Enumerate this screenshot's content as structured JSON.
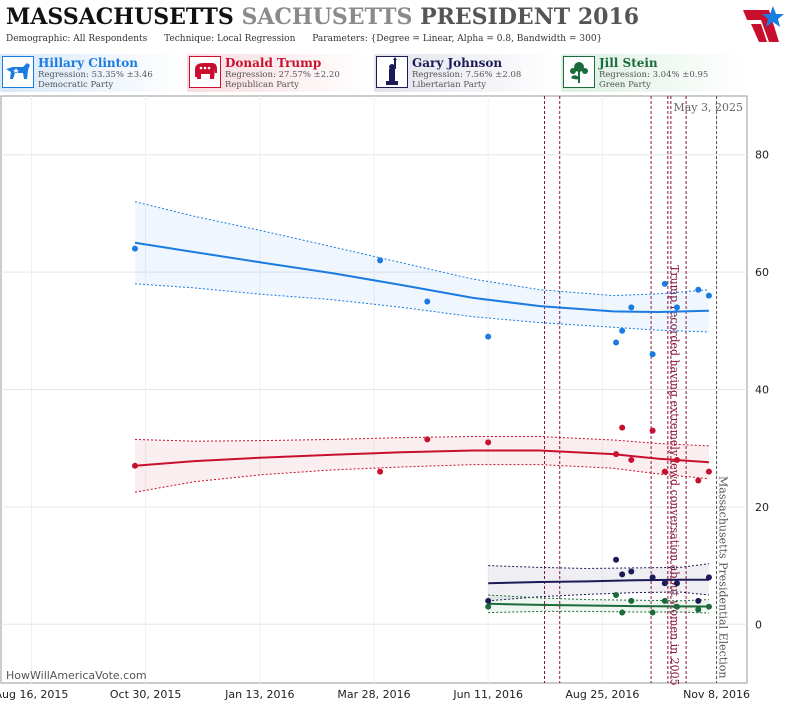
{
  "header": {
    "state": "MASSACHUSETTS",
    "watermark": "SACHUSETTS",
    "race": "PRESIDENT 2016",
    "demographic": "Demographic: All Respondents",
    "technique": "Technique: Local Regression",
    "parameters": "Parameters: {Degree = Linear, Alpha = 0.8, Bandwidth = 300}"
  },
  "candidates": [
    {
      "name": "Hillary Clinton",
      "regression": "Regression: 53.35% ±3.46",
      "party": "Democratic Party",
      "color": "#1a7be0",
      "icon": "donkey-icon"
    },
    {
      "name": "Donald Trump",
      "regression": "Regression: 27.57% ±2.20",
      "party": "Republican Party",
      "color": "#c8102e",
      "icon": "elephant-icon"
    },
    {
      "name": "Gary Johnson",
      "regression": "Regression: 7.56% ±2.08",
      "party": "Libertarian Party",
      "color": "#1c1a57",
      "icon": "statue-of-liberty-icon"
    },
    {
      "name": "Jill Stein",
      "regression": "Regression: 3.04% ±0.95",
      "party": "Green Party",
      "color": "#1c6b3a",
      "icon": "sunflower-icon"
    }
  ],
  "date_stamp": "May 3, 2025",
  "source": "HowWillAmericaVote.com",
  "chart_data": {
    "type": "scatter",
    "x_axis": {
      "type": "date",
      "range": [
        "2015-07-27",
        "2016-11-28"
      ],
      "ticks": [
        {
          "date": "2015-08-16",
          "label": "Aug 16, 2015"
        },
        {
          "date": "2015-10-30",
          "label": "Oct 30, 2015"
        },
        {
          "date": "2016-01-13",
          "label": "Jan 13, 2016"
        },
        {
          "date": "2016-03-28",
          "label": "Mar 28, 2016"
        },
        {
          "date": "2016-06-11",
          "label": "Jun 11, 2016"
        },
        {
          "date": "2016-08-25",
          "label": "Aug 25, 2016"
        },
        {
          "date": "2016-11-08",
          "label": "Nov 8, 2016"
        }
      ]
    },
    "y_axis": {
      "range": [
        -10,
        90
      ],
      "ticks": [
        0,
        20,
        40,
        60,
        80
      ],
      "side": "right"
    },
    "grid": true,
    "events": [
      {
        "date": "2016-07-18",
        "style": "dashed",
        "color": "#8b1538",
        "label": ""
      },
      {
        "date": "2016-07-28",
        "style": "dashed",
        "color": "#8b1538",
        "label": ""
      },
      {
        "date": "2016-09-26",
        "style": "dashed",
        "color": "#8b1538",
        "label": ""
      },
      {
        "date": "2016-10-07",
        "style": "dashed",
        "color": "#8b1538",
        "label": "Trump recorded having extremely lewd conversation about women in 2005"
      },
      {
        "date": "2016-10-09",
        "style": "dashed",
        "color": "#8b1538",
        "label": ""
      },
      {
        "date": "2016-10-19",
        "style": "dashed",
        "color": "#8b1538",
        "label": ""
      },
      {
        "date": "2016-11-08",
        "style": "dashed",
        "color": "#555555",
        "label": "Massachusetts Presidential Election"
      }
    ],
    "series": [
      {
        "name": "Hillary Clinton",
        "color": "#1a7be0",
        "points": [
          [
            "2015-10-23",
            64
          ],
          [
            "2016-04-01",
            62
          ],
          [
            "2016-05-02",
            55
          ],
          [
            "2016-06-11",
            49
          ],
          [
            "2016-09-03",
            48
          ],
          [
            "2016-09-07",
            50
          ],
          [
            "2016-09-13",
            54
          ],
          [
            "2016-09-27",
            46
          ],
          [
            "2016-10-05",
            58
          ],
          [
            "2016-10-13",
            54
          ],
          [
            "2016-10-27",
            57
          ],
          [
            "2016-11-03",
            56
          ]
        ],
        "trend": [
          [
            "2015-10-23",
            65
          ],
          [
            "2015-12-01",
            63.4
          ],
          [
            "2016-01-15",
            61.6
          ],
          [
            "2016-03-01",
            59.8
          ],
          [
            "2016-04-15",
            57.8
          ],
          [
            "2016-06-01",
            55.6
          ],
          [
            "2016-07-15",
            54.2
          ],
          [
            "2016-09-01",
            53.3
          ],
          [
            "2016-10-01",
            53.2
          ],
          [
            "2016-11-03",
            53.4
          ]
        ],
        "upper": [
          [
            "2015-10-23",
            72
          ],
          [
            "2015-12-01",
            69.5
          ],
          [
            "2016-01-15",
            67
          ],
          [
            "2016-03-01",
            64.3
          ],
          [
            "2016-04-15",
            61.6
          ],
          [
            "2016-06-01",
            58.8
          ],
          [
            "2016-07-15",
            57
          ],
          [
            "2016-09-01",
            56
          ],
          [
            "2016-10-01",
            56.3
          ],
          [
            "2016-11-03",
            57
          ]
        ],
        "lower": [
          [
            "2015-10-23",
            58
          ],
          [
            "2015-12-01",
            57.3
          ],
          [
            "2016-01-15",
            56.2
          ],
          [
            "2016-03-01",
            55.3
          ],
          [
            "2016-04-15",
            54
          ],
          [
            "2016-06-01",
            52.4
          ],
          [
            "2016-07-15",
            51.4
          ],
          [
            "2016-09-01",
            50.6
          ],
          [
            "2016-10-01",
            50.1
          ],
          [
            "2016-11-03",
            49.8
          ]
        ]
      },
      {
        "name": "Donald Trump",
        "color": "#c8102e",
        "points": [
          [
            "2015-10-23",
            27
          ],
          [
            "2016-04-01",
            26
          ],
          [
            "2016-05-02",
            31.5
          ],
          [
            "2016-06-11",
            31
          ],
          [
            "2016-09-03",
            29
          ],
          [
            "2016-09-07",
            33.5
          ],
          [
            "2016-09-13",
            28
          ],
          [
            "2016-09-27",
            33
          ],
          [
            "2016-10-05",
            26
          ],
          [
            "2016-10-13",
            28
          ],
          [
            "2016-10-27",
            24.5
          ],
          [
            "2016-11-03",
            26
          ]
        ],
        "trend": [
          [
            "2015-10-23",
            27
          ],
          [
            "2015-12-01",
            27.8
          ],
          [
            "2016-01-15",
            28.4
          ],
          [
            "2016-03-01",
            28.9
          ],
          [
            "2016-04-15",
            29.3
          ],
          [
            "2016-06-01",
            29.6
          ],
          [
            "2016-07-15",
            29.6
          ],
          [
            "2016-09-01",
            29
          ],
          [
            "2016-10-01",
            28.2
          ],
          [
            "2016-11-03",
            27.6
          ]
        ],
        "upper": [
          [
            "2015-10-23",
            31.5
          ],
          [
            "2015-12-01",
            31.2
          ],
          [
            "2016-01-15",
            31.3
          ],
          [
            "2016-03-01",
            31.5
          ],
          [
            "2016-04-15",
            31.8
          ],
          [
            "2016-06-01",
            32
          ],
          [
            "2016-07-15",
            32
          ],
          [
            "2016-09-01",
            31.4
          ],
          [
            "2016-10-01",
            30.8
          ],
          [
            "2016-11-03",
            30.4
          ]
        ],
        "lower": [
          [
            "2015-10-23",
            22.5
          ],
          [
            "2015-12-01",
            24.3
          ],
          [
            "2016-01-15",
            25.5
          ],
          [
            "2016-03-01",
            26.3
          ],
          [
            "2016-04-15",
            26.8
          ],
          [
            "2016-06-01",
            27.2
          ],
          [
            "2016-07-15",
            27.2
          ],
          [
            "2016-09-01",
            26.6
          ],
          [
            "2016-10-01",
            25.6
          ],
          [
            "2016-11-03",
            24.8
          ]
        ]
      },
      {
        "name": "Gary Johnson",
        "color": "#1c1a57",
        "points": [
          [
            "2016-06-11",
            4
          ],
          [
            "2016-09-03",
            11
          ],
          [
            "2016-09-07",
            8.5
          ],
          [
            "2016-09-13",
            9
          ],
          [
            "2016-09-27",
            8
          ],
          [
            "2016-10-05",
            7
          ],
          [
            "2016-10-13",
            7
          ],
          [
            "2016-10-27",
            4
          ],
          [
            "2016-11-03",
            8
          ]
        ],
        "trend": [
          [
            "2016-06-11",
            7
          ],
          [
            "2016-07-15",
            7.2
          ],
          [
            "2016-08-15",
            7.3
          ],
          [
            "2016-09-15",
            7.5
          ],
          [
            "2016-10-15",
            7.6
          ],
          [
            "2016-11-03",
            7.6
          ]
        ],
        "upper": [
          [
            "2016-06-11",
            10
          ],
          [
            "2016-07-15",
            9.7
          ],
          [
            "2016-08-15",
            9.5
          ],
          [
            "2016-09-15",
            9.6
          ],
          [
            "2016-10-15",
            9.7
          ],
          [
            "2016-11-03",
            10.3
          ]
        ],
        "lower": [
          [
            "2016-06-11",
            4
          ],
          [
            "2016-07-15",
            4.7
          ],
          [
            "2016-08-15",
            5.1
          ],
          [
            "2016-09-15",
            5.4
          ],
          [
            "2016-10-15",
            5.5
          ],
          [
            "2016-11-03",
            5
          ]
        ]
      },
      {
        "name": "Jill Stein",
        "color": "#1c6b3a",
        "points": [
          [
            "2016-06-11",
            3
          ],
          [
            "2016-09-03",
            5
          ],
          [
            "2016-09-07",
            2
          ],
          [
            "2016-09-13",
            4
          ],
          [
            "2016-09-27",
            2
          ],
          [
            "2016-10-05",
            4
          ],
          [
            "2016-10-13",
            3
          ],
          [
            "2016-10-27",
            2.5
          ],
          [
            "2016-11-03",
            3
          ]
        ],
        "trend": [
          [
            "2016-06-11",
            3.5
          ],
          [
            "2016-07-15",
            3.3
          ],
          [
            "2016-08-15",
            3.2
          ],
          [
            "2016-09-15",
            3.1
          ],
          [
            "2016-10-15",
            3.05
          ],
          [
            "2016-11-03",
            3.04
          ]
        ],
        "upper": [
          [
            "2016-06-11",
            5
          ],
          [
            "2016-07-15",
            4.5
          ],
          [
            "2016-08-15",
            4.2
          ],
          [
            "2016-09-15",
            4.1
          ],
          [
            "2016-10-15",
            4
          ],
          [
            "2016-11-03",
            4.2
          ]
        ],
        "lower": [
          [
            "2016-06-11",
            2
          ],
          [
            "2016-07-15",
            2.2
          ],
          [
            "2016-08-15",
            2.2
          ],
          [
            "2016-09-15",
            2.1
          ],
          [
            "2016-10-15",
            2.1
          ],
          [
            "2016-11-03",
            1.9
          ]
        ]
      }
    ]
  }
}
